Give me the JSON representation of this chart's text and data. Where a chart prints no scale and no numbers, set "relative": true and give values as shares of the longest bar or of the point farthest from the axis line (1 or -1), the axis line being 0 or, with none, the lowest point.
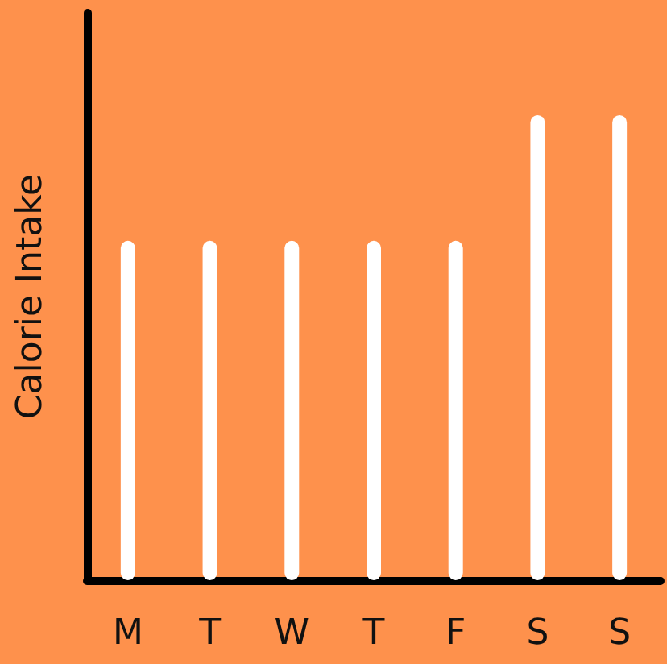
{
  "chart_data": {
    "type": "bar",
    "ylabel": "Calorie Intake",
    "categories": [
      "M",
      "T",
      "W",
      "T",
      "F",
      "S",
      "S"
    ],
    "values": [
      0.73,
      0.73,
      0.73,
      0.73,
      0.73,
      1,
      1
    ],
    "color": "#ffffff",
    "relative": true,
    "grid": false
  }
}
